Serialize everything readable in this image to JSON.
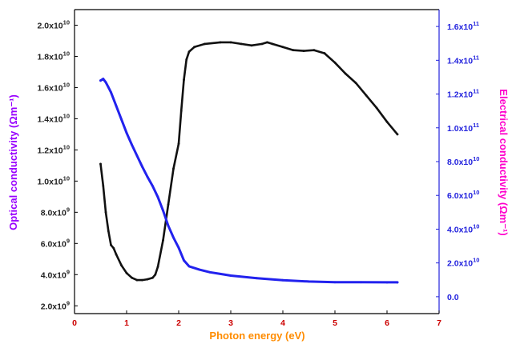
{
  "chart_data": {
    "type": "line",
    "title": "",
    "xlabel": "Photon energy (eV)",
    "ylabel_left": "Optical conductivity (Ωm⁻¹)",
    "ylabel_right": "Electrical conductivity (Ωm⁻¹)",
    "xlim": [
      0,
      7
    ],
    "ylim_left": [
      1500000000.0,
      21000000000.0
    ],
    "ylim_right": [
      -10000000000.0,
      170000000000.0
    ],
    "x_ticks": [
      "0",
      "1",
      "2",
      "3",
      "4",
      "5",
      "6",
      "7"
    ],
    "y_ticks_left": [
      {
        "v": 2000000000.0,
        "mant": "2.0x10",
        "exp": "9"
      },
      {
        "v": 4000000000.0,
        "mant": "4.0x10",
        "exp": "9"
      },
      {
        "v": 6000000000.0,
        "mant": "6.0x10",
        "exp": "9"
      },
      {
        "v": 8000000000.0,
        "mant": "8.0x10",
        "exp": "9"
      },
      {
        "v": 10000000000.0,
        "mant": "1.0x10",
        "exp": "10"
      },
      {
        "v": 12000000000.0,
        "mant": "1.2x10",
        "exp": "10"
      },
      {
        "v": 14000000000.0,
        "mant": "1.4x10",
        "exp": "10"
      },
      {
        "v": 16000000000.0,
        "mant": "1.6x10",
        "exp": "10"
      },
      {
        "v": 18000000000.0,
        "mant": "1.8x10",
        "exp": "10"
      },
      {
        "v": 20000000000.0,
        "mant": "2.0x10",
        "exp": "10"
      }
    ],
    "y_ticks_right": [
      {
        "v": 0,
        "mant": "0.0",
        "exp": ""
      },
      {
        "v": 20000000000.0,
        "mant": "2.0x10",
        "exp": "10"
      },
      {
        "v": 40000000000.0,
        "mant": "4.0x10",
        "exp": "10"
      },
      {
        "v": 60000000000.0,
        "mant": "6.0x10",
        "exp": "10"
      },
      {
        "v": 80000000000.0,
        "mant": "8.0x10",
        "exp": "10"
      },
      {
        "v": 100000000000.0,
        "mant": "1.0x10",
        "exp": "11"
      },
      {
        "v": 120000000000.0,
        "mant": "1.2x10",
        "exp": "11"
      },
      {
        "v": 140000000000.0,
        "mant": "1.4x10",
        "exp": "11"
      },
      {
        "v": 160000000000.0,
        "mant": "1.6x10",
        "exp": "11"
      }
    ],
    "grid": false,
    "colors": {
      "left_axis": "#000000",
      "right_axis": "#2222dd",
      "x_ticklabels": "#cc0000",
      "xlabel": "#ff8c00",
      "ylabel_left": "#9900ff",
      "ylabel_right": "#ff00cc",
      "right_ticklabels": "#2222dd"
    },
    "series": [
      {
        "axis": "left",
        "color": "#111111",
        "x": [
          0.5,
          0.55,
          0.6,
          0.65,
          0.7,
          0.75,
          0.8,
          0.9,
          1.0,
          1.1,
          1.2,
          1.3,
          1.4,
          1.5,
          1.55,
          1.6,
          1.7,
          1.8,
          1.9,
          2.0,
          2.05,
          2.1,
          2.15,
          2.2,
          2.3,
          2.5,
          2.8,
          3.0,
          3.2,
          3.4,
          3.6,
          3.7,
          3.8,
          4.0,
          4.2,
          4.4,
          4.6,
          4.8,
          5.0,
          5.2,
          5.4,
          5.6,
          5.8,
          6.0,
          6.2
        ],
        "y": [
          11100000000.0,
          9700000000.0,
          8000000000.0,
          6800000000.0,
          5900000000.0,
          5700000000.0,
          5300000000.0,
          4600000000.0,
          4100000000.0,
          3800000000.0,
          3650000000.0,
          3650000000.0,
          3700000000.0,
          3800000000.0,
          4000000000.0,
          4500000000.0,
          6200000000.0,
          8500000000.0,
          10800000000.0,
          12400000000.0,
          14500000000.0,
          16500000000.0,
          17800000000.0,
          18300000000.0,
          18600000000.0,
          18800000000.0,
          18900000000.0,
          18900000000.0,
          18800000000.0,
          18700000000.0,
          18800000000.0,
          18900000000.0,
          18800000000.0,
          18600000000.0,
          18400000000.0,
          18350000000.0,
          18400000000.0,
          18200000000.0,
          17600000000.0,
          16900000000.0,
          16300000000.0,
          15500000000.0,
          14700000000.0,
          13800000000.0,
          13000000000.0
        ]
      },
      {
        "axis": "right",
        "color": "#2222ee",
        "x": [
          0.5,
          0.55,
          0.6,
          0.65,
          0.7,
          0.8,
          0.9,
          1.0,
          1.1,
          1.2,
          1.3,
          1.4,
          1.5,
          1.6,
          1.7,
          1.8,
          1.9,
          2.0,
          2.1,
          2.2,
          2.4,
          2.6,
          2.8,
          3.0,
          3.5,
          4.0,
          4.5,
          5.0,
          5.5,
          6.0,
          6.2
        ],
        "y": [
          128000000000.0,
          129000000000.0,
          127000000000.0,
          124000000000.0,
          121000000000.0,
          113000000000.0,
          105000000000.0,
          97000000000.0,
          90000000000.0,
          83500000000.0,
          77000000000.0,
          71000000000.0,
          65500000000.0,
          59000000000.0,
          51000000000.0,
          42000000000.0,
          35000000000.0,
          29000000000.0,
          21500000000.0,
          18000000000.0,
          16000000000.0,
          14500000000.0,
          13500000000.0,
          12500000000.0,
          11000000000.0,
          9800000000.0,
          9000000000.0,
          8600000000.0,
          8600000000.0,
          8500000000.0,
          8500000000.0
        ]
      }
    ]
  }
}
